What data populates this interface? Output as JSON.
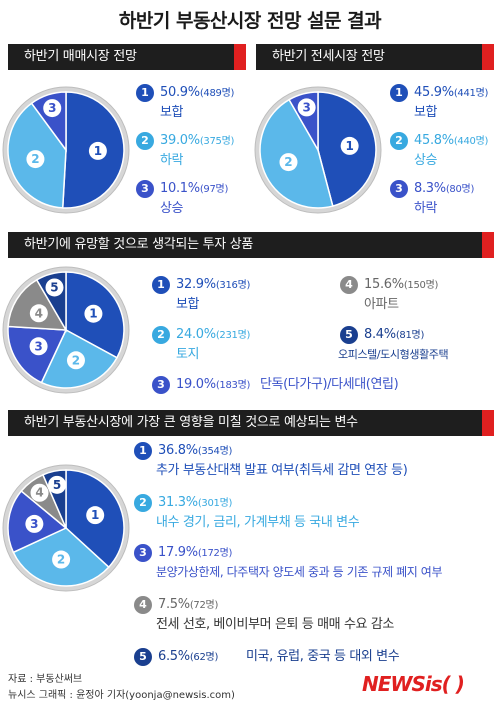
{
  "title": "하반기 부동산시장 전망 설문 결과",
  "sections": [
    {
      "title": "하반기 매매시장 전망"
    },
    {
      "title": "하반기 전세시장 전망"
    },
    {
      "title": "하반기에 유망할 것으로 생각되는 투자 상품"
    },
    {
      "title": "하반기 부동산시장에 가장 큰 영향을 미칠 것으로 예상되는 변수"
    }
  ],
  "chart_data": [
    {
      "type": "pie",
      "title": "하반기 매매시장 전망",
      "slices": [
        {
          "num": "1",
          "label": "보합",
          "pct": "50.9%",
          "count": "(489명)",
          "value": 50.9,
          "color": "#1f4fb8"
        },
        {
          "num": "2",
          "label": "하락",
          "pct": "39.0%",
          "count": "(375명)",
          "value": 39.0,
          "color": "#5bb8ea"
        },
        {
          "num": "3",
          "label": "상승",
          "pct": "10.1%",
          "count": "(97명)",
          "value": 10.1,
          "color": "#3a52c9"
        }
      ]
    },
    {
      "type": "pie",
      "title": "하반기 전세시장 전망",
      "slices": [
        {
          "num": "1",
          "label": "보합",
          "pct": "45.9%",
          "count": "(441명)",
          "value": 45.9,
          "color": "#1f4fb8"
        },
        {
          "num": "2",
          "label": "상승",
          "pct": "45.8%",
          "count": "(440명)",
          "value": 45.8,
          "color": "#5bb8ea"
        },
        {
          "num": "3",
          "label": "하락",
          "pct": "8.3%",
          "count": "(80명)",
          "value": 8.3,
          "color": "#3a52c9"
        }
      ]
    },
    {
      "type": "pie",
      "title": "하반기에 유망할 것으로 생각되는 투자 상품",
      "slices": [
        {
          "num": "1",
          "label": "보합",
          "pct": "32.9%",
          "count": "(316명)",
          "value": 32.9,
          "color": "#1f4fb8"
        },
        {
          "num": "2",
          "label": "토지",
          "pct": "24.0%",
          "count": "(231명)",
          "value": 24.0,
          "color": "#5bb8ea"
        },
        {
          "num": "3",
          "label": "단독(다가구)/다세대(연립)",
          "pct": "19.0%",
          "count": "(183명)",
          "value": 19.0,
          "color": "#3a52c9"
        },
        {
          "num": "4",
          "label": "아파트",
          "pct": "15.6%",
          "count": "(150명)",
          "value": 15.6,
          "color": "#8a8a8a"
        },
        {
          "num": "5",
          "label": "오피스텔/도시형생활주택",
          "pct": "8.4%",
          "count": "(81명)",
          "value": 8.4,
          "color": "#1a3f8f"
        }
      ]
    },
    {
      "type": "pie",
      "title": "하반기 부동산시장에 가장 큰 영향을 미칠 것으로 예상되는 변수",
      "slices": [
        {
          "num": "1",
          "label": "추가 부동산대책 발표 여부(취득세 감면 연장 등)",
          "pct": "36.8%",
          "count": "(354명)",
          "value": 36.8,
          "color": "#1f4fb8"
        },
        {
          "num": "2",
          "label": "내수 경기, 금리, 가계부채 등 국내 변수",
          "pct": "31.3%",
          "count": "(301명)",
          "value": 31.3,
          "color": "#5bb8ea"
        },
        {
          "num": "3",
          "label": "분양가상한제, 다주택자 양도세 중과 등 기존 규제 폐지 여부",
          "pct": "17.9%",
          "count": "(172명)",
          "value": 17.9,
          "color": "#3a52c9"
        },
        {
          "num": "4",
          "label": "전세 선호, 베이비부머 은퇴 등 매매 수요 감소",
          "pct": "7.5%",
          "count": "(72명)",
          "value": 7.5,
          "color": "#8a8a8a"
        },
        {
          "num": "5",
          "label": "미국, 유럽, 중국 등 대외 변수",
          "pct": "6.5%",
          "count": "(62명)",
          "value": 6.5,
          "color": "#1a3f8f"
        }
      ]
    }
  ],
  "footer": {
    "source": "자료 : 부동산써브",
    "credit": "뉴시스 그래픽 : 윤정아 기자(yoonja@newsis.com)",
    "logo": "NEWSis( )"
  }
}
